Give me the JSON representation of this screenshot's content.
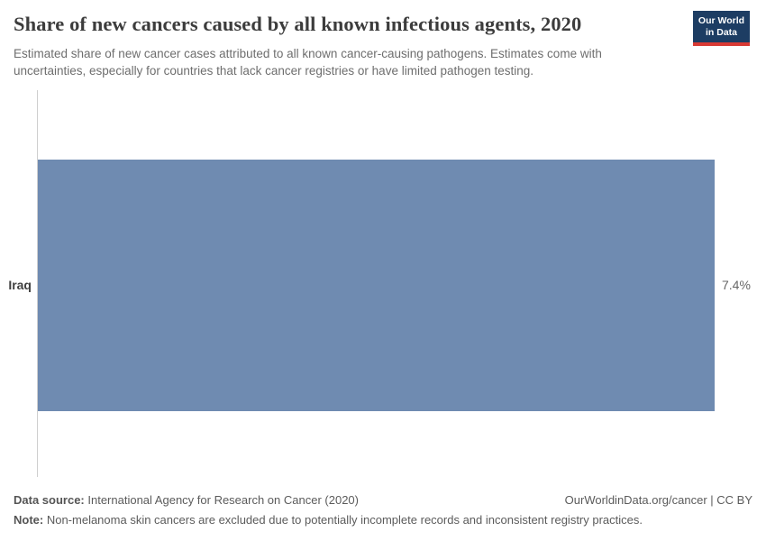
{
  "header": {
    "title": "Share of new cancers caused by all known infectious agents, 2020",
    "subtitle_line1": "Estimated share of new cancer cases attributed to all known cancer-causing pathogens. Estimates come with",
    "subtitle_line2": "uncertainties, especially for countries that lack cancer registries or have limited pathogen testing.",
    "logo": {
      "line1": "Our World",
      "line2": "in Data",
      "bg_color": "#1d3d63",
      "stripe_color": "#d93a34"
    }
  },
  "chart": {
    "entity_label": "Iraq",
    "value_label": "7.4%",
    "bar_color": "#6f8bb1",
    "axis_color": "#cfcfcf"
  },
  "chart_data": {
    "type": "bar",
    "orientation": "horizontal",
    "categories": [
      "Iraq"
    ],
    "values": [
      7.4
    ],
    "value_labels": [
      "7.4%"
    ],
    "title": "Share of new cancers caused by all known infectious agents, 2020",
    "xlabel": "",
    "ylabel": "",
    "xlim": [
      0,
      7.4
    ],
    "grid": false,
    "legend": false
  },
  "footer": {
    "data_source_label": "Data source:",
    "data_source_text": " International Agency for Research on Cancer (2020)",
    "attribution": "OurWorldinData.org/cancer | CC BY",
    "note_label": "Note:",
    "note_text": " Non-melanoma skin cancers are excluded due to potentially incomplete records and inconsistent registry practices."
  }
}
